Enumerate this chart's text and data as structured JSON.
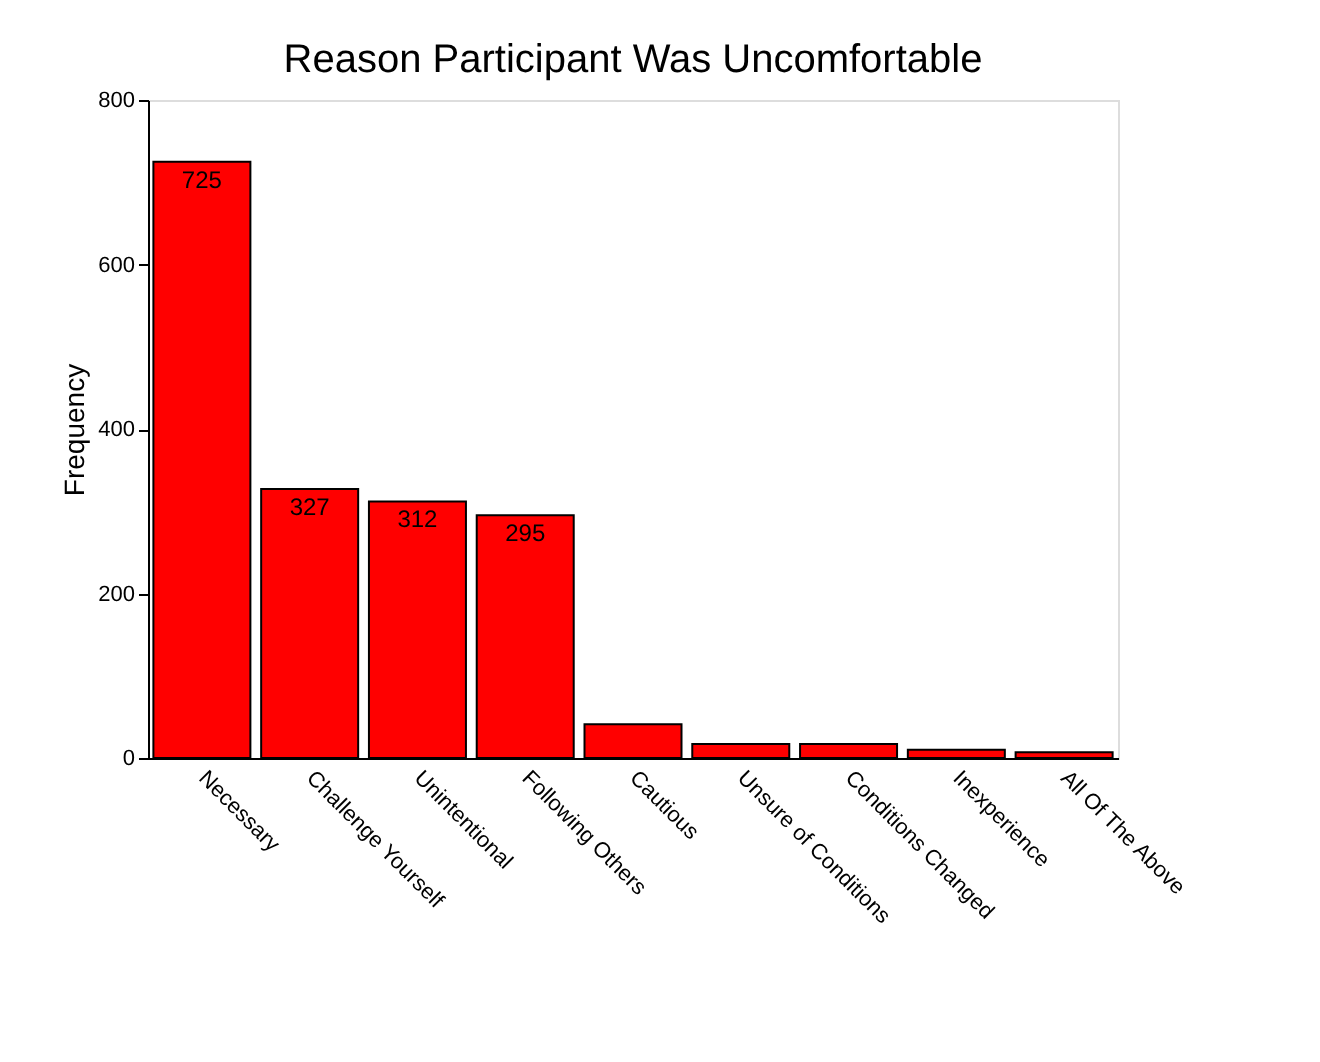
{
  "chart_data": {
    "type": "bar",
    "title": "Reason Participant Was Uncomfortable",
    "ylabel": "Frequency",
    "categories": [
      "Necessary",
      "Challenge Yourself",
      "Unintentional",
      "Following Others",
      "Cautious",
      "Unsure of Conditions",
      "Conditions Changed",
      "Inexperience",
      "All Of The Above"
    ],
    "values": [
      725,
      327,
      312,
      295,
      41,
      17,
      17,
      10,
      7
    ],
    "value_labels": [
      "725",
      "327",
      "312",
      "295",
      null,
      null,
      null,
      null,
      null
    ],
    "color": "#ff0000",
    "ylim": [
      0,
      800
    ],
    "yticks": [
      0,
      200,
      400,
      600,
      800
    ],
    "grid": false
  }
}
